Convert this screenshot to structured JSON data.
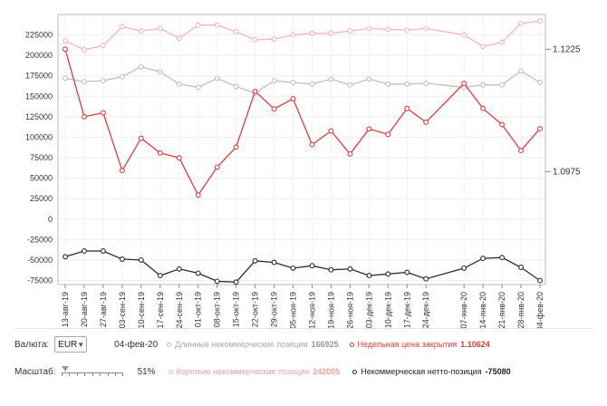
{
  "chart_data": {
    "type": "line",
    "x": [
      "13-авг-19",
      "20-авг-19",
      "27-авг-19",
      "03-сен-19",
      "10-сен-19",
      "17-сен-19",
      "24-сен-19",
      "01-окт-19",
      "08-окт-19",
      "15-окт-19",
      "22-окт-19",
      "29-окт-19",
      "05-ноя-19",
      "12-ноя-19",
      "19-ноя-19",
      "26-ноя-19",
      "03-дек-19",
      "10-дек-19",
      "17-дек-19",
      "24-дек-19",
      "07-янв-20",
      "14-янв-20",
      "21-янв-20",
      "28-янв-20",
      "04-фев-20"
    ],
    "x_dates": [
      "2019-08-13",
      "2019-08-20",
      "2019-08-27",
      "2019-09-03",
      "2019-09-10",
      "2019-09-17",
      "2019-09-24",
      "2019-10-01",
      "2019-10-08",
      "2019-10-15",
      "2019-10-22",
      "2019-10-29",
      "2019-11-05",
      "2019-11-12",
      "2019-11-19",
      "2019-11-26",
      "2019-12-03",
      "2019-12-10",
      "2019-12-17",
      "2019-12-24",
      "2020-01-07",
      "2020-01-14",
      "2020-01-21",
      "2020-01-28",
      "2020-02-04"
    ],
    "ylim": [
      -80000,
      250000
    ],
    "yticks": [
      225000,
      200000,
      175000,
      150000,
      125000,
      100000,
      75000,
      50000,
      25000,
      0,
      -25000,
      -50000,
      -75000
    ],
    "y2_ticks": [
      {
        "label": "1.1225",
        "value": 1.1225
      },
      {
        "label": "1.0975",
        "value": 1.0975
      }
    ],
    "y2lim": [
      1.0744,
      1.1296
    ],
    "grid": true,
    "series": [
      {
        "name": "Длинные некоммерческие позиции",
        "color": "#c0c0c0",
        "marker": true,
        "values": [
          172000,
          168000,
          169000,
          174000,
          186000,
          180000,
          165000,
          161000,
          172000,
          162000,
          154000,
          169000,
          167000,
          165000,
          171000,
          164000,
          171000,
          165000,
          165000,
          166000,
          161000,
          164000,
          164000,
          181000,
          166925
        ]
      },
      {
        "name": "Короткие некоммерческие позиции",
        "color": "#f5b8b8",
        "marker": true,
        "values": [
          218000,
          207000,
          212000,
          235000,
          230000,
          233000,
          221000,
          237000,
          237000,
          229000,
          219000,
          220000,
          225000,
          227000,
          227000,
          230000,
          233000,
          232000,
          231000,
          233000,
          225000,
          211000,
          216000,
          239000,
          242005
        ]
      },
      {
        "name": "Некоммерческая нетто-позиция",
        "color": "#2b2b2b",
        "marker": true,
        "values": [
          -46000,
          -39000,
          -39000,
          -49000,
          -50000,
          -69000,
          -61000,
          -66000,
          -76000,
          -77000,
          -51000,
          -53000,
          -60000,
          -57000,
          -62000,
          -61000,
          -69000,
          -67000,
          -65000,
          -73000,
          -60000,
          -48000,
          -47000,
          -59000,
          -75080
        ]
      },
      {
        "name": "Недельная цена закрытия",
        "color": "#e8393c",
        "axis": "right",
        "marker": true,
        "values": [
          1.1225,
          1.1087,
          1.1095,
          1.0977,
          1.1043,
          1.1013,
          1.1003,
          1.0927,
          1.0984,
          1.1025,
          1.1139,
          1.1103,
          1.1124,
          1.103,
          1.1058,
          1.1011,
          1.1062,
          1.1051,
          1.1104,
          1.1076,
          1.1155,
          1.1104,
          1.1071,
          1.1018,
          1.10624
        ]
      }
    ]
  },
  "controls": {
    "currency_label": "Валюта:",
    "currency_value": "EUR",
    "date": "04-фев-20",
    "long_label": "Длинные некоммерческие позиции",
    "long_value": "166925",
    "close_label": "Недельная цена закрытия",
    "close_value": "1.10624",
    "scale_label": "Масштаб:",
    "scale_value": "51%",
    "short_label": "Короткие некоммерческие позиции",
    "short_value": "242005",
    "net_label": "Некоммерческая нетто-позиция",
    "net_value": "-75080",
    "colors": {
      "long": "#c0c0c0",
      "short": "#f5b8b8",
      "net": "#2b2b2b",
      "close": "#e8393c"
    }
  }
}
